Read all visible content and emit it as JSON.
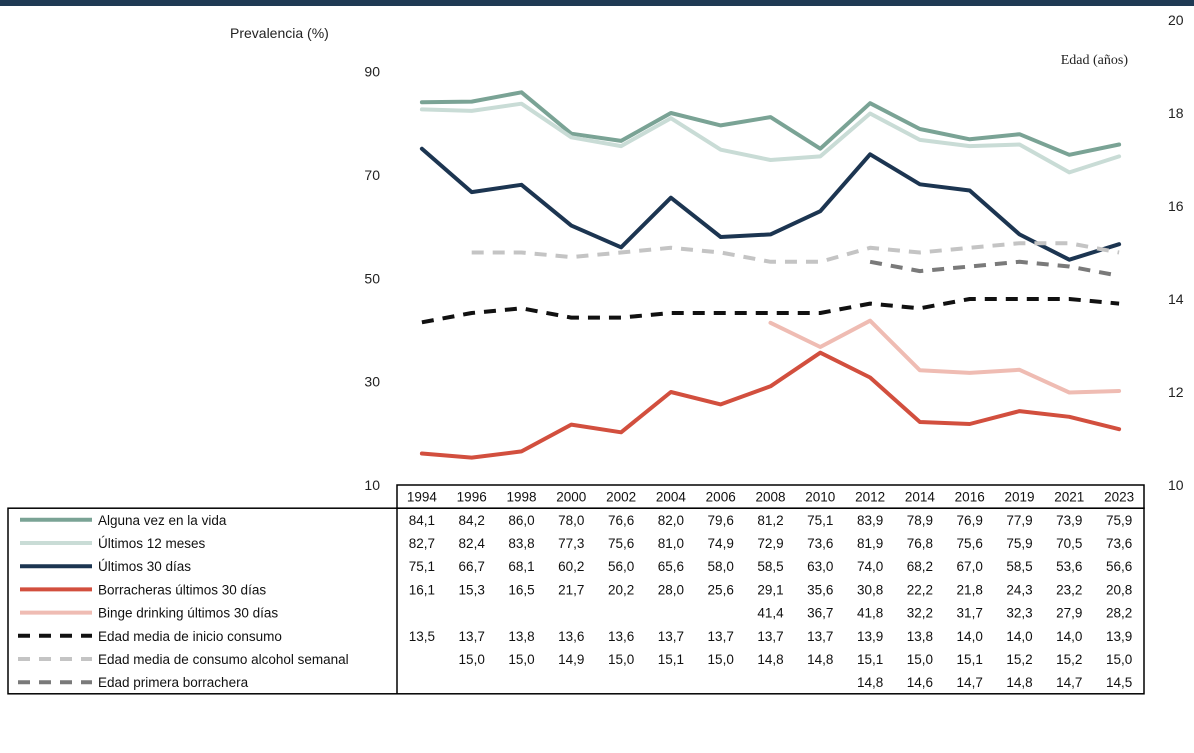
{
  "chart_data": {
    "type": "line",
    "left_axis_label": "Prevalencia (%)",
    "right_axis_label": "Edad (años)",
    "left_axis": {
      "range": [
        10,
        100
      ],
      "ticks": [
        10,
        30,
        50,
        70,
        90
      ]
    },
    "right_axis": {
      "range": [
        10,
        20
      ],
      "ticks": [
        10,
        12,
        14,
        16,
        18,
        20
      ]
    },
    "categories": [
      "1994",
      "1996",
      "1998",
      "2000",
      "2002",
      "2004",
      "2006",
      "2008",
      "2010",
      "2012",
      "2014",
      "2016",
      "2019",
      "2021",
      "2023"
    ],
    "series": [
      {
        "name": "Alguna vez en la vida",
        "axis": "left",
        "color": "#7aa395",
        "dash": "solid",
        "values": [
          84.1,
          84.2,
          86.0,
          78.0,
          76.6,
          82.0,
          79.6,
          81.2,
          75.1,
          83.9,
          78.9,
          76.9,
          77.9,
          73.9,
          75.9
        ],
        "labels": [
          "84,1",
          "84,2",
          "86,0",
          "78,0",
          "76,6",
          "82,0",
          "79,6",
          "81,2",
          "75,1",
          "83,9",
          "78,9",
          "76,9",
          "77,9",
          "73,9",
          "75,9"
        ]
      },
      {
        "name": "Últimos 12 meses",
        "axis": "left",
        "color": "#c9dcd6",
        "dash": "solid",
        "values": [
          82.7,
          82.4,
          83.8,
          77.3,
          75.6,
          81.0,
          74.9,
          72.9,
          73.6,
          81.9,
          76.8,
          75.6,
          75.9,
          70.5,
          73.6
        ],
        "labels": [
          "82,7",
          "82,4",
          "83,8",
          "77,3",
          "75,6",
          "81,0",
          "74,9",
          "72,9",
          "73,6",
          "81,9",
          "76,8",
          "75,6",
          "75,9",
          "70,5",
          "73,6"
        ]
      },
      {
        "name": "Últimos 30 días",
        "axis": "left",
        "color": "#1c3551",
        "dash": "solid",
        "values": [
          75.1,
          66.7,
          68.1,
          60.2,
          56.0,
          65.6,
          58.0,
          58.5,
          63.0,
          74.0,
          68.2,
          67.0,
          58.5,
          53.6,
          56.6
        ],
        "labels": [
          "75,1",
          "66,7",
          "68,1",
          "60,2",
          "56,0",
          "65,6",
          "58,0",
          "58,5",
          "63,0",
          "74,0",
          "68,2",
          "67,0",
          "58,5",
          "53,6",
          "56,6"
        ]
      },
      {
        "name": "Borracheras últimos 30 días",
        "axis": "left",
        "color": "#d24f3e",
        "dash": "solid",
        "values": [
          16.1,
          15.3,
          16.5,
          21.7,
          20.2,
          28.0,
          25.6,
          29.1,
          35.6,
          30.8,
          22.2,
          21.8,
          24.3,
          23.2,
          20.8
        ],
        "labels": [
          "16,1",
          "15,3",
          "16,5",
          "21,7",
          "20,2",
          "28,0",
          "25,6",
          "29,1",
          "35,6",
          "30,8",
          "22,2",
          "21,8",
          "24,3",
          "23,2",
          "20,8"
        ]
      },
      {
        "name": "Binge drinking últimos 30 días",
        "axis": "left",
        "color": "#efbcb3",
        "dash": "solid",
        "values": [
          null,
          null,
          null,
          null,
          null,
          null,
          null,
          41.4,
          36.7,
          41.8,
          32.2,
          31.7,
          32.3,
          27.9,
          28.2
        ],
        "labels": [
          "",
          "",
          "",
          "",
          "",
          "",
          "",
          "41,4",
          "36,7",
          "41,8",
          "32,2",
          "31,7",
          "32,3",
          "27,9",
          "28,2"
        ]
      },
      {
        "name": "Edad media de inicio consumo",
        "axis": "right",
        "color": "#111111",
        "dash": "dashed",
        "values": [
          13.5,
          13.7,
          13.8,
          13.6,
          13.6,
          13.7,
          13.7,
          13.7,
          13.7,
          13.9,
          13.8,
          14.0,
          14.0,
          14.0,
          13.9
        ],
        "labels": [
          "13,5",
          "13,7",
          "13,8",
          "13,6",
          "13,6",
          "13,7",
          "13,7",
          "13,7",
          "13,7",
          "13,9",
          "13,8",
          "14,0",
          "14,0",
          "14,0",
          "13,9"
        ]
      },
      {
        "name": "Edad media de consumo alcohol semanal",
        "axis": "right",
        "color": "#c4c4c4",
        "dash": "dashed",
        "values": [
          null,
          15.0,
          15.0,
          14.9,
          15.0,
          15.1,
          15.0,
          14.8,
          14.8,
          15.1,
          15.0,
          15.1,
          15.2,
          15.2,
          15.0
        ],
        "labels": [
          "",
          "15,0",
          "15,0",
          "14,9",
          "15,0",
          "15,1",
          "15,0",
          "14,8",
          "14,8",
          "15,1",
          "15,0",
          "15,1",
          "15,2",
          "15,2",
          "15,0"
        ]
      },
      {
        "name": "Edad primera borrachera",
        "axis": "right",
        "color": "#7a7a7a",
        "dash": "dashed",
        "values": [
          null,
          null,
          null,
          null,
          null,
          null,
          null,
          null,
          null,
          14.8,
          14.6,
          14.7,
          14.8,
          14.7,
          14.5
        ],
        "labels": [
          "",
          "",
          "",
          "",
          "",
          "",
          "",
          "",
          "",
          "14,8",
          "14,6",
          "14,7",
          "14,8",
          "14,7",
          "14,5"
        ]
      }
    ]
  }
}
